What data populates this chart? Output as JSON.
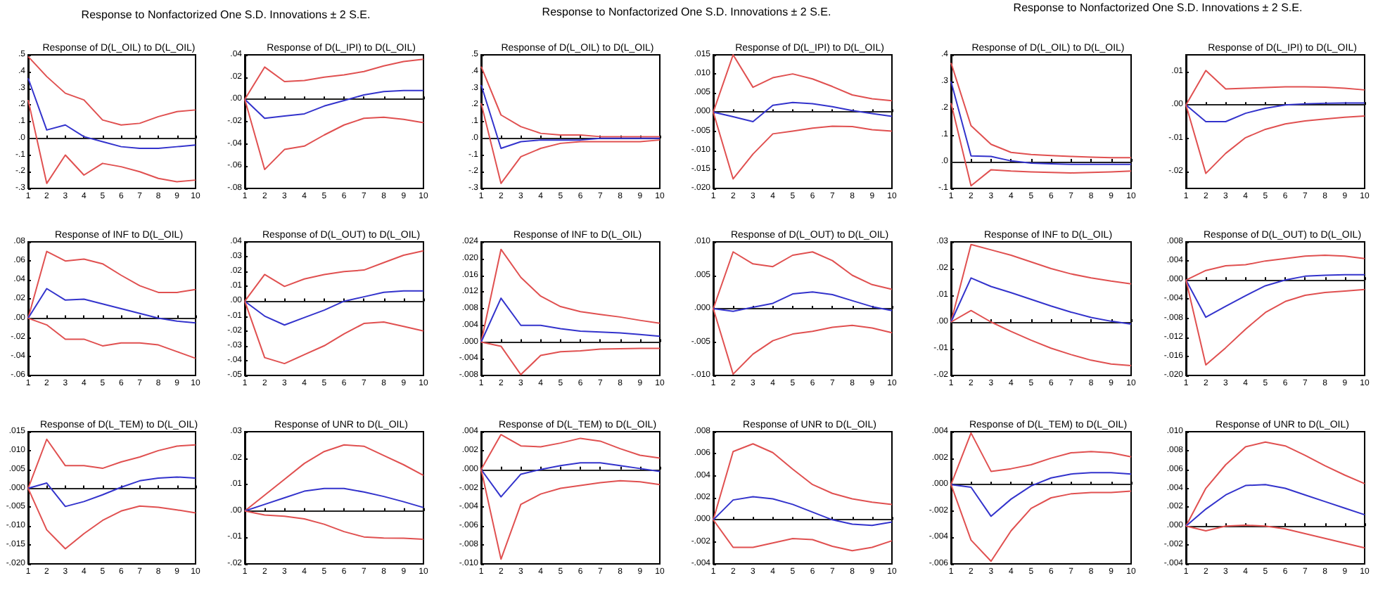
{
  "chart_data": [
    {
      "type": "line",
      "title": "Response of D(L_OIL) to D(L_OIL)",
      "annotations": [
        "Response to Nonfactorized One S.D. Innovations ± 2 S.E."
      ],
      "categories": [
        "1",
        "2",
        "3",
        "4",
        "5",
        "6",
        "7",
        "8",
        "9",
        "10"
      ],
      "ylim": [
        -0.3,
        0.5
      ],
      "yticks": [
        {
          "value": -0.3,
          "label": "-.3"
        },
        {
          "value": -0.2,
          "label": "-.2"
        },
        {
          "value": -0.1,
          "label": "-.1"
        },
        {
          "value": 0,
          "label": ".0"
        },
        {
          "value": 0.1,
          "label": ".1"
        },
        {
          "value": 0.2,
          "label": ".2"
        },
        {
          "value": 0.3,
          "label": ".3"
        },
        {
          "value": 0.4,
          "label": ".4"
        },
        {
          "value": 0.5,
          "label": ".5"
        }
      ],
      "ref_lines": [
        {
          "axis": "y",
          "value": 0
        }
      ],
      "grid": false,
      "series": [
        {
          "color": "#e05050",
          "values": [
            0.49,
            0.37,
            0.27,
            0.23,
            0.11,
            0.08,
            0.09,
            0.13,
            0.16,
            0.17
          ]
        },
        {
          "color": "#e05050",
          "values": [
            0.23,
            -0.27,
            -0.1,
            -0.22,
            -0.15,
            -0.17,
            -0.2,
            -0.24,
            -0.26,
            -0.25
          ]
        },
        {
          "color": "#3333cc",
          "values": [
            0.36,
            0.05,
            0.08,
            0.01,
            -0.02,
            -0.05,
            -0.06,
            -0.06,
            -0.05,
            -0.04
          ]
        }
      ]
    },
    {
      "type": "line",
      "title": "Response of D(L_IPI) to D(L_OIL)",
      "categories": [
        "1",
        "2",
        "3",
        "4",
        "5",
        "6",
        "7",
        "8",
        "9",
        "10"
      ],
      "ylim": [
        -0.08,
        0.04
      ],
      "yticks": [
        {
          "value": -0.08,
          "label": "-.08"
        },
        {
          "value": -0.06,
          "label": "-.06"
        },
        {
          "value": -0.04,
          "label": "-.04"
        },
        {
          "value": -0.02,
          "label": "-.02"
        },
        {
          "value": 0,
          "label": ".00"
        },
        {
          "value": 0.02,
          "label": ".02"
        },
        {
          "value": 0.04,
          "label": ".04"
        }
      ],
      "ref_lines": [
        {
          "axis": "y",
          "value": 0
        }
      ],
      "grid": false,
      "series": [
        {
          "color": "#e05050",
          "values": [
            0,
            0.029,
            0.016,
            0.017,
            0.02,
            0.022,
            0.025,
            0.03,
            0.034,
            0.036
          ]
        },
        {
          "color": "#3333cc",
          "values": [
            0,
            -0.017,
            -0.015,
            -0.013,
            -0.006,
            -0.001,
            0.004,
            0.007,
            0.008,
            0.008
          ]
        },
        {
          "color": "#e05050",
          "values": [
            0,
            -0.063,
            -0.045,
            -0.042,
            -0.032,
            -0.023,
            -0.017,
            -0.016,
            -0.018,
            -0.021
          ]
        }
      ]
    },
    {
      "type": "line",
      "title": "Response of INF to D(L_OIL)",
      "categories": [
        "1",
        "2",
        "3",
        "4",
        "5",
        "6",
        "7",
        "8",
        "9",
        "10"
      ],
      "ylim": [
        -0.06,
        0.08
      ],
      "yticks": [
        {
          "value": -0.06,
          "label": "-.06"
        },
        {
          "value": -0.04,
          "label": "-.04"
        },
        {
          "value": -0.02,
          "label": "-.02"
        },
        {
          "value": 0,
          "label": ".00"
        },
        {
          "value": 0.02,
          "label": ".02"
        },
        {
          "value": 0.04,
          "label": ".04"
        },
        {
          "value": 0.06,
          "label": ".06"
        },
        {
          "value": 0.08,
          "label": ".08"
        }
      ],
      "ref_lines": [
        {
          "axis": "y",
          "value": 0
        }
      ],
      "grid": false,
      "series": [
        {
          "color": "#e05050",
          "values": [
            0,
            0.07,
            0.06,
            0.062,
            0.057,
            0.045,
            0.034,
            0.027,
            0.027,
            0.03
          ]
        },
        {
          "color": "#3333cc",
          "values": [
            0,
            0.031,
            0.019,
            0.02,
            0.015,
            0.01,
            0.005,
            0,
            -0.003,
            -0.005
          ]
        },
        {
          "color": "#e05050",
          "values": [
            0,
            -0.007,
            -0.022,
            -0.022,
            -0.029,
            -0.026,
            -0.026,
            -0.028,
            -0.035,
            -0.042
          ]
        }
      ]
    },
    {
      "type": "line",
      "title": "Response of D(L_OUT) to D(L_OIL)",
      "categories": [
        "1",
        "2",
        "3",
        "4",
        "5",
        "6",
        "7",
        "8",
        "9",
        "10"
      ],
      "ylim": [
        -0.05,
        0.04
      ],
      "yticks": [
        {
          "value": -0.05,
          "label": "-.05"
        },
        {
          "value": -0.04,
          "label": "-.04"
        },
        {
          "value": -0.03,
          "label": "-.03"
        },
        {
          "value": -0.02,
          "label": "-.02"
        },
        {
          "value": -0.01,
          "label": "-.01"
        },
        {
          "value": 0,
          "label": ".00"
        },
        {
          "value": 0.01,
          "label": ".01"
        },
        {
          "value": 0.02,
          "label": ".02"
        },
        {
          "value": 0.03,
          "label": ".03"
        },
        {
          "value": 0.04,
          "label": ".04"
        }
      ],
      "ref_lines": [
        {
          "axis": "y",
          "value": 0
        }
      ],
      "grid": false,
      "series": [
        {
          "color": "#e05050",
          "values": [
            0,
            0.018,
            0.01,
            0.015,
            0.018,
            0.02,
            0.021,
            0.026,
            0.031,
            0.034
          ]
        },
        {
          "color": "#3333cc",
          "values": [
            0,
            -0.01,
            -0.016,
            -0.011,
            -0.006,
            0,
            0.003,
            0.006,
            0.007,
            0.007
          ]
        },
        {
          "color": "#e05050",
          "values": [
            0,
            -0.038,
            -0.042,
            -0.036,
            -0.03,
            -0.022,
            -0.015,
            -0.014,
            -0.017,
            -0.02
          ]
        }
      ]
    },
    {
      "type": "line",
      "title": "Response of D(L_TEM) to D(L_OIL)",
      "categories": [
        "1",
        "2",
        "3",
        "4",
        "5",
        "6",
        "7",
        "8",
        "9",
        "10"
      ],
      "ylim": [
        -0.02,
        0.015
      ],
      "yticks": [
        {
          "value": -0.02,
          "label": "-.020"
        },
        {
          "value": -0.015,
          "label": "-.015"
        },
        {
          "value": -0.01,
          "label": "-.010"
        },
        {
          "value": -0.005,
          "label": "-.005"
        },
        {
          "value": 0,
          "label": ".000"
        },
        {
          "value": 0.005,
          "label": ".005"
        },
        {
          "value": 0.01,
          "label": ".010"
        },
        {
          "value": 0.015,
          "label": ".015"
        }
      ],
      "ref_lines": [
        {
          "axis": "y",
          "value": 0
        }
      ],
      "grid": false,
      "series": [
        {
          "color": "#e05050",
          "values": [
            0,
            0.013,
            0.006,
            0.006,
            0.0053,
            0.007,
            0.0083,
            0.01,
            0.0112,
            0.0115
          ]
        },
        {
          "color": "#3333cc",
          "values": [
            0,
            0.0014,
            -0.0048,
            -0.0035,
            -0.0017,
            0.0003,
            0.002,
            0.0027,
            0.003,
            0.0027
          ]
        },
        {
          "color": "#e05050",
          "values": [
            0,
            -0.011,
            -0.016,
            -0.012,
            -0.0085,
            -0.006,
            -0.0047,
            -0.005,
            -0.0057,
            -0.0065
          ]
        }
      ]
    },
    {
      "type": "line",
      "title": "Response of UNR to D(L_OIL)",
      "categories": [
        "1",
        "2",
        "3",
        "4",
        "5",
        "6",
        "7",
        "8",
        "9",
        "10"
      ],
      "ylim": [
        -0.02,
        0.03
      ],
      "yticks": [
        {
          "value": -0.02,
          "label": "-.02"
        },
        {
          "value": -0.01,
          "label": "-.01"
        },
        {
          "value": 0,
          "label": ".00"
        },
        {
          "value": 0.01,
          "label": ".01"
        },
        {
          "value": 0.02,
          "label": ".02"
        },
        {
          "value": 0.03,
          "label": ".03"
        }
      ],
      "ref_lines": [
        {
          "axis": "y",
          "value": 0
        }
      ],
      "grid": false,
      "series": [
        {
          "color": "#e05050",
          "values": [
            0,
            0.006,
            0.012,
            0.018,
            0.0225,
            0.025,
            0.0245,
            0.021,
            0.0175,
            0.0135
          ]
        },
        {
          "color": "#3333cc",
          "values": [
            0,
            0.0025,
            0.005,
            0.0075,
            0.0085,
            0.0085,
            0.0072,
            0.0055,
            0.0035,
            0.0013
          ]
        },
        {
          "color": "#e05050",
          "values": [
            0,
            -0.0015,
            -0.002,
            -0.003,
            -0.005,
            -0.0078,
            -0.0098,
            -0.0102,
            -0.0103,
            -0.0107
          ]
        }
      ]
    },
    {
      "type": "line",
      "title": "Response of D(L_OIL) to D(L_OIL)",
      "annotations": [
        "Response to Nonfactorized One S.D. Innovations ± 2 S.E."
      ],
      "categories": [
        "1",
        "2",
        "3",
        "4",
        "5",
        "6",
        "7",
        "8",
        "9",
        "10"
      ],
      "ylim": [
        -0.3,
        0.5
      ],
      "yticks": [
        {
          "value": -0.3,
          "label": "-.3"
        },
        {
          "value": -0.2,
          "label": "-.2"
        },
        {
          "value": -0.1,
          "label": "-.1"
        },
        {
          "value": 0,
          "label": ".0"
        },
        {
          "value": 0.1,
          "label": ".1"
        },
        {
          "value": 0.2,
          "label": ".2"
        },
        {
          "value": 0.3,
          "label": ".3"
        },
        {
          "value": 0.4,
          "label": ".4"
        },
        {
          "value": 0.5,
          "label": ".5"
        }
      ],
      "ref_lines": [
        {
          "axis": "y",
          "value": 0
        }
      ],
      "grid": false,
      "series": [
        {
          "color": "#e05050",
          "values": [
            0.43,
            0.14,
            0.07,
            0.03,
            0.02,
            0.02,
            0.01,
            0.01,
            0.01,
            0.01
          ]
        },
        {
          "color": "#e05050",
          "values": [
            0.21,
            -0.27,
            -0.11,
            -0.06,
            -0.03,
            -0.02,
            -0.02,
            -0.02,
            -0.02,
            -0.01
          ]
        },
        {
          "color": "#3333cc",
          "values": [
            0.32,
            -0.06,
            -0.02,
            -0.01,
            -0.01,
            -0.01,
            0,
            0,
            0,
            0
          ]
        }
      ]
    },
    {
      "type": "line",
      "title": "Response of D(L_IPI) to D(L_OIL)",
      "categories": [
        "1",
        "2",
        "3",
        "4",
        "5",
        "6",
        "7",
        "8",
        "9",
        "10"
      ],
      "ylim": [
        -0.02,
        0.015
      ],
      "yticks": [
        {
          "value": -0.02,
          "label": "-.020"
        },
        {
          "value": -0.015,
          "label": "-.015"
        },
        {
          "value": -0.01,
          "label": "-.010"
        },
        {
          "value": -0.005,
          "label": "-.005"
        },
        {
          "value": 0,
          "label": ".000"
        },
        {
          "value": 0.005,
          "label": ".005"
        },
        {
          "value": 0.01,
          "label": ".010"
        },
        {
          "value": 0.015,
          "label": ".015"
        }
      ],
      "ref_lines": [
        {
          "axis": "y",
          "value": 0
        }
      ],
      "grid": false,
      "series": [
        {
          "color": "#e05050",
          "values": [
            0,
            0.015,
            0.0065,
            0.009,
            0.01,
            0.0087,
            0.0067,
            0.0045,
            0.0035,
            0.003
          ]
        },
        {
          "color": "#3333cc",
          "values": [
            0,
            -0.0012,
            -0.0025,
            0.0018,
            0.0025,
            0.0022,
            0.0014,
            0.0004,
            -0.0004,
            -0.0011
          ]
        },
        {
          "color": "#e05050",
          "values": [
            0,
            -0.0175,
            -0.011,
            -0.0057,
            -0.005,
            -0.0042,
            -0.0037,
            -0.0038,
            -0.0046,
            -0.005
          ]
        }
      ]
    },
    {
      "type": "line",
      "title": "Response of INF to D(L_OIL)",
      "categories": [
        "1",
        "2",
        "3",
        "4",
        "5",
        "6",
        "7",
        "8",
        "9",
        "10"
      ],
      "ylim": [
        -0.008,
        0.024
      ],
      "yticks": [
        {
          "value": -0.008,
          "label": "-.008"
        },
        {
          "value": -0.004,
          "label": "-.004"
        },
        {
          "value": 0,
          "label": ".000"
        },
        {
          "value": 0.004,
          "label": ".004"
        },
        {
          "value": 0.008,
          "label": ".008"
        },
        {
          "value": 0.012,
          "label": ".012"
        },
        {
          "value": 0.016,
          "label": ".016"
        },
        {
          "value": 0.02,
          "label": ".020"
        },
        {
          "value": 0.024,
          "label": ".024"
        }
      ],
      "ref_lines": [
        {
          "axis": "y",
          "value": 0
        }
      ],
      "grid": false,
      "series": [
        {
          "color": "#e05050",
          "values": [
            0,
            0.0222,
            0.0155,
            0.011,
            0.0085,
            0.0073,
            0.0066,
            0.006,
            0.0052,
            0.0045
          ]
        },
        {
          "color": "#3333cc",
          "values": [
            0,
            0.0105,
            0.004,
            0.004,
            0.0032,
            0.0026,
            0.0024,
            0.0022,
            0.0018,
            0.0014
          ]
        },
        {
          "color": "#e05050",
          "values": [
            0,
            -0.001,
            -0.0078,
            -0.0032,
            -0.0023,
            -0.0021,
            -0.0017,
            -0.0016,
            -0.0015,
            -0.0015
          ]
        }
      ]
    },
    {
      "type": "line",
      "title": "Response of D(L_OUT) to D(L_OIL)",
      "categories": [
        "1",
        "2",
        "3",
        "4",
        "5",
        "6",
        "7",
        "8",
        "9",
        "10"
      ],
      "ylim": [
        -0.01,
        0.01
      ],
      "yticks": [
        {
          "value": -0.01,
          "label": "-.010"
        },
        {
          "value": -0.005,
          "label": "-.005"
        },
        {
          "value": 0,
          "label": ".000"
        },
        {
          "value": 0.005,
          "label": ".005"
        },
        {
          "value": 0.01,
          "label": ".010"
        }
      ],
      "ref_lines": [
        {
          "axis": "y",
          "value": 0
        }
      ],
      "grid": false,
      "series": [
        {
          "color": "#e05050",
          "values": [
            0,
            0.0085,
            0.0067,
            0.0063,
            0.008,
            0.0085,
            0.0072,
            0.005,
            0.0036,
            0.0029
          ]
        },
        {
          "color": "#3333cc",
          "values": [
            0,
            -0.0004,
            0.0002,
            0.0008,
            0.0022,
            0.0025,
            0.0021,
            0.0012,
            0.0003,
            -0.0003
          ]
        },
        {
          "color": "#e05050",
          "values": [
            0,
            -0.0098,
            -0.0068,
            -0.0048,
            -0.0038,
            -0.0034,
            -0.0028,
            -0.0025,
            -0.0029,
            -0.0036
          ]
        }
      ]
    },
    {
      "type": "line",
      "title": "Response of D(L_TEM) to D(L_OIL)",
      "categories": [
        "1",
        "2",
        "3",
        "4",
        "5",
        "6",
        "7",
        "8",
        "9",
        "10"
      ],
      "ylim": [
        -0.01,
        0.004
      ],
      "yticks": [
        {
          "value": -0.01,
          "label": "-.010"
        },
        {
          "value": -0.008,
          "label": "-.008"
        },
        {
          "value": -0.006,
          "label": "-.006"
        },
        {
          "value": -0.004,
          "label": "-.004"
        },
        {
          "value": -0.002,
          "label": "-.002"
        },
        {
          "value": 0,
          "label": ".000"
        },
        {
          "value": 0.002,
          "label": ".002"
        },
        {
          "value": 0.004,
          "label": ".004"
        }
      ],
      "ref_lines": [
        {
          "axis": "y",
          "value": 0
        }
      ],
      "grid": false,
      "series": [
        {
          "color": "#e05050",
          "values": [
            0,
            0.0037,
            0.0025,
            0.0024,
            0.0028,
            0.0033,
            0.003,
            0.0022,
            0.0015,
            0.0012
          ]
        },
        {
          "color": "#3333cc",
          "values": [
            0,
            -0.0029,
            -0.0005,
            0,
            0.0004,
            0.0007,
            0.0007,
            0.0004,
            0.0001,
            -0.0002
          ]
        },
        {
          "color": "#e05050",
          "values": [
            0,
            -0.0095,
            -0.0037,
            -0.0026,
            -0.002,
            -0.0017,
            -0.0014,
            -0.0012,
            -0.0013,
            -0.0016
          ]
        }
      ]
    },
    {
      "type": "line",
      "title": "Response of UNR to D(L_OIL)",
      "categories": [
        "1",
        "2",
        "3",
        "4",
        "5",
        "6",
        "7",
        "8",
        "9",
        "10"
      ],
      "ylim": [
        -0.004,
        0.008
      ],
      "yticks": [
        {
          "value": -0.004,
          "label": "-.004"
        },
        {
          "value": -0.002,
          "label": "-.002"
        },
        {
          "value": 0,
          "label": ".000"
        },
        {
          "value": 0.002,
          "label": ".002"
        },
        {
          "value": 0.004,
          "label": ".004"
        },
        {
          "value": 0.006,
          "label": ".006"
        },
        {
          "value": 0.008,
          "label": ".008"
        }
      ],
      "ref_lines": [
        {
          "axis": "y",
          "value": 0
        }
      ],
      "grid": false,
      "series": [
        {
          "color": "#e05050",
          "values": [
            0,
            0.0062,
            0.0069,
            0.0061,
            0.0046,
            0.0032,
            0.0024,
            0.0019,
            0.0016,
            0.0014
          ]
        },
        {
          "color": "#3333cc",
          "values": [
            0,
            0.0018,
            0.0021,
            0.0019,
            0.0014,
            0.0007,
            0,
            -0.0004,
            -0.0005,
            -0.0002
          ]
        },
        {
          "color": "#e05050",
          "values": [
            0,
            -0.0025,
            -0.0025,
            -0.0021,
            -0.0017,
            -0.0018,
            -0.0024,
            -0.0028,
            -0.0025,
            -0.0019
          ]
        }
      ]
    },
    {
      "type": "line",
      "title": "Response of D(L_OIL) to D(L_OIL)",
      "annotations": [
        "Response to Nonfactorized One S.D. Innovations ± 2 S.E."
      ],
      "categories": [
        "1",
        "2",
        "3",
        "4",
        "5",
        "6",
        "7",
        "8",
        "9",
        "10"
      ],
      "ylim": [
        -0.1,
        0.4
      ],
      "yticks": [
        {
          "value": -0.1,
          "label": "-.1"
        },
        {
          "value": 0,
          "label": ".0"
        },
        {
          "value": 0.1,
          "label": ".1"
        },
        {
          "value": 0.2,
          "label": ".2"
        },
        {
          "value": 0.3,
          "label": ".3"
        },
        {
          "value": 0.4,
          "label": ".4"
        }
      ],
      "ref_lines": [
        {
          "axis": "y",
          "value": 0
        }
      ],
      "grid": false,
      "series": [
        {
          "color": "#e05050",
          "values": [
            0.37,
            0.135,
            0.065,
            0.035,
            0.027,
            0.023,
            0.02,
            0.017,
            0.015,
            0.015
          ]
        },
        {
          "color": "#3333cc",
          "values": [
            0.3,
            0.022,
            0.02,
            0.003,
            -0.005,
            -0.008,
            -0.01,
            -0.01,
            -0.01,
            -0.01
          ]
        },
        {
          "color": "#e05050",
          "values": [
            0.22,
            -0.09,
            -0.03,
            -0.035,
            -0.038,
            -0.04,
            -0.042,
            -0.04,
            -0.038,
            -0.035
          ]
        }
      ]
    },
    {
      "type": "line",
      "title": "Response of D(L_IPI) to D(L_OIL)",
      "categories": [
        "1",
        "2",
        "3",
        "4",
        "5",
        "6",
        "7",
        "8",
        "9",
        "10"
      ],
      "ylim": [
        -0.025,
        0.015
      ],
      "yticks": [
        {
          "value": -0.02,
          "label": "-.02"
        },
        {
          "value": -0.01,
          "label": "-.01"
        },
        {
          "value": 0,
          "label": ".00"
        },
        {
          "value": 0.01,
          "label": ".01"
        }
      ],
      "ref_lines": [
        {
          "axis": "y",
          "value": 0
        }
      ],
      "grid": false,
      "series": [
        {
          "color": "#e05050",
          "values": [
            0,
            0.0103,
            0.0048,
            0.005,
            0.0052,
            0.0054,
            0.0054,
            0.0053,
            0.005,
            0.0045
          ]
        },
        {
          "color": "#3333cc",
          "values": [
            0,
            -0.005,
            -0.005,
            -0.0025,
            -0.001,
            0,
            0.0003,
            0.0005,
            0.0006,
            0.0006
          ]
        },
        {
          "color": "#e05050",
          "values": [
            0,
            -0.0205,
            -0.0145,
            -0.0098,
            -0.0073,
            -0.0057,
            -0.0048,
            -0.0042,
            -0.0037,
            -0.0033
          ]
        }
      ]
    },
    {
      "type": "line",
      "title": "Response of INF to D(L_OIL)",
      "categories": [
        "1",
        "2",
        "3",
        "4",
        "5",
        "6",
        "7",
        "8",
        "9",
        "10"
      ],
      "ylim": [
        -0.02,
        0.03
      ],
      "yticks": [
        {
          "value": -0.02,
          "label": "-.02"
        },
        {
          "value": -0.01,
          "label": "-.01"
        },
        {
          "value": 0,
          "label": ".00"
        },
        {
          "value": 0.01,
          "label": ".01"
        },
        {
          "value": 0.02,
          "label": ".02"
        },
        {
          "value": 0.03,
          "label": ".03"
        }
      ],
      "ref_lines": [
        {
          "axis": "y",
          "value": 0
        }
      ],
      "grid": false,
      "series": [
        {
          "color": "#e05050",
          "values": [
            0,
            0.029,
            0.027,
            0.025,
            0.0225,
            0.02,
            0.018,
            0.0165,
            0.0153,
            0.0143
          ]
        },
        {
          "color": "#3333cc",
          "values": [
            0,
            0.0165,
            0.0133,
            0.011,
            0.0085,
            0.006,
            0.0037,
            0.0017,
            0.0003,
            -0.0008
          ]
        },
        {
          "color": "#e05050",
          "values": [
            0,
            0.0043,
            0,
            -0.0035,
            -0.0068,
            -0.0098,
            -0.0122,
            -0.0143,
            -0.0157,
            -0.0163
          ]
        }
      ]
    },
    {
      "type": "line",
      "title": "Response of D(L_OUT) to D(L_OIL)",
      "categories": [
        "1",
        "2",
        "3",
        "4",
        "5",
        "6",
        "7",
        "8",
        "9",
        "10"
      ],
      "ylim": [
        -0.02,
        0.008
      ],
      "yticks": [
        {
          "value": -0.02,
          "label": "-.020"
        },
        {
          "value": -0.016,
          "label": "-.016"
        },
        {
          "value": -0.012,
          "label": "-.012"
        },
        {
          "value": -0.008,
          "label": "-.008"
        },
        {
          "value": -0.004,
          "label": "-.004"
        },
        {
          "value": 0,
          "label": ".000"
        },
        {
          "value": 0.004,
          "label": ".004"
        },
        {
          "value": 0.008,
          "label": ".008"
        }
      ],
      "ref_lines": [
        {
          "axis": "y",
          "value": 0
        }
      ],
      "grid": false,
      "series": [
        {
          "color": "#e05050",
          "values": [
            0,
            0.002,
            0.003,
            0.0032,
            0.004,
            0.0045,
            0.005,
            0.0052,
            0.005,
            0.0045
          ]
        },
        {
          "color": "#3333cc",
          "values": [
            0,
            -0.0078,
            -0.0055,
            -0.0033,
            -0.0012,
            0,
            0.0008,
            0.001,
            0.0011,
            0.0011
          ]
        },
        {
          "color": "#e05050",
          "values": [
            0,
            -0.0178,
            -0.0142,
            -0.0103,
            -0.0068,
            -0.0045,
            -0.0032,
            -0.0026,
            -0.0023,
            -0.002
          ]
        }
      ]
    },
    {
      "type": "line",
      "title": "Response of D(L_TEM) to D(L_OIL)",
      "categories": [
        "1",
        "2",
        "3",
        "4",
        "5",
        "6",
        "7",
        "8",
        "9",
        "10"
      ],
      "ylim": [
        -0.006,
        0.004
      ],
      "yticks": [
        {
          "value": -0.006,
          "label": "-.006"
        },
        {
          "value": -0.004,
          "label": "-.004"
        },
        {
          "value": -0.002,
          "label": "-.002"
        },
        {
          "value": 0,
          "label": ".000"
        },
        {
          "value": 0.002,
          "label": ".002"
        },
        {
          "value": 0.004,
          "label": ".004"
        }
      ],
      "ref_lines": [
        {
          "axis": "y",
          "value": 0
        }
      ],
      "grid": false,
      "series": [
        {
          "color": "#e05050",
          "values": [
            0,
            0.0039,
            0.001,
            0.0012,
            0.0015,
            0.002,
            0.0024,
            0.0025,
            0.0024,
            0.0021
          ]
        },
        {
          "color": "#3333cc",
          "values": [
            0,
            -0.0002,
            -0.0024,
            -0.0011,
            -0.0001,
            0.0005,
            0.0008,
            0.0009,
            0.0009,
            0.0008
          ]
        },
        {
          "color": "#e05050",
          "values": [
            0,
            -0.0042,
            -0.0058,
            -0.0035,
            -0.0018,
            -0.001,
            -0.0007,
            -0.0006,
            -0.0006,
            -0.0005
          ]
        }
      ]
    },
    {
      "type": "line",
      "title": "Response of UNR to D(L_OIL)",
      "categories": [
        "1",
        "2",
        "3",
        "4",
        "5",
        "6",
        "7",
        "8",
        "9",
        "10"
      ],
      "ylim": [
        -0.004,
        0.01
      ],
      "yticks": [
        {
          "value": -0.004,
          "label": "-.004"
        },
        {
          "value": -0.002,
          "label": "-.002"
        },
        {
          "value": 0,
          "label": ".000"
        },
        {
          "value": 0.002,
          "label": ".002"
        },
        {
          "value": 0.004,
          "label": ".004"
        },
        {
          "value": 0.006,
          "label": ".006"
        },
        {
          "value": 0.008,
          "label": ".008"
        },
        {
          "value": 0.01,
          "label": ".010"
        }
      ],
      "ref_lines": [
        {
          "axis": "y",
          "value": 0
        }
      ],
      "grid": false,
      "series": [
        {
          "color": "#e05050",
          "values": [
            0,
            0.004,
            0.0065,
            0.0084,
            0.0089,
            0.0085,
            0.0075,
            0.0064,
            0.0054,
            0.0045
          ]
        },
        {
          "color": "#3333cc",
          "values": [
            0,
            0.0018,
            0.0033,
            0.0043,
            0.0044,
            0.004,
            0.0033,
            0.0026,
            0.0019,
            0.0012
          ]
        },
        {
          "color": "#e05050",
          "values": [
            0,
            -0.0005,
            0,
            0.0001,
            0,
            -0.0003,
            -0.0008,
            -0.0013,
            -0.0018,
            -0.0023
          ]
        }
      ]
    }
  ]
}
